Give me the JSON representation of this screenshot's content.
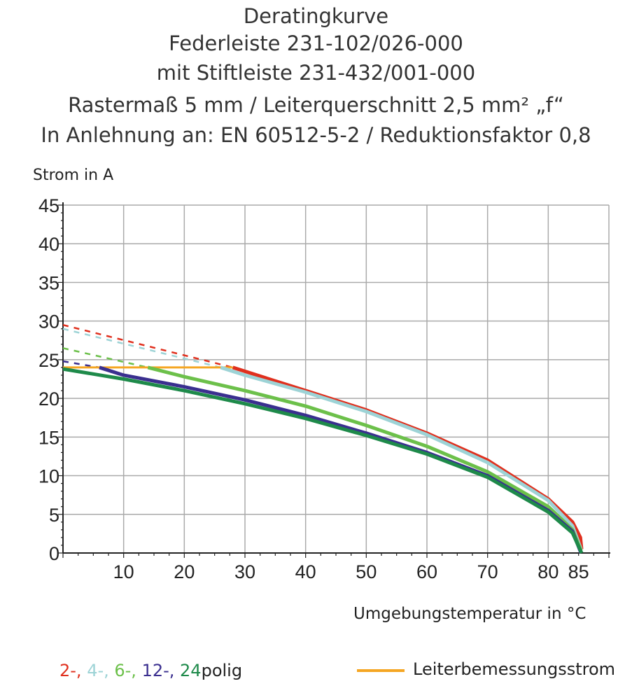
{
  "chart_data": {
    "type": "line",
    "title": [
      "Deratingkurve",
      "Federleiste 231-102/026-000",
      "mit Stiftleiste 231-432/001-000",
      "Rastermaß 5 mm / Leiterquerschnitt 2,5 mm² „f“",
      "In Anlehnung an: EN 60512-5-2 / Reduktionsfaktor 0,8"
    ],
    "ylabel": "Strom in A",
    "xlabel": "Umgebungstemperatur in °C",
    "xlim": [
      0,
      90
    ],
    "ylim": [
      0,
      45
    ],
    "xticks": [
      10,
      20,
      30,
      40,
      50,
      60,
      70,
      80,
      85
    ],
    "yticks": [
      0,
      5,
      10,
      15,
      20,
      25,
      30,
      35,
      40,
      45
    ],
    "grid": true,
    "series": [
      {
        "name": "2-",
        "color": "#e0301e",
        "dashed": [
          [
            0,
            29.5
          ],
          [
            28,
            24
          ]
        ],
        "values": [
          [
            28,
            24
          ],
          [
            40,
            21
          ],
          [
            50,
            18.5
          ],
          [
            60,
            15.5
          ],
          [
            70,
            12
          ],
          [
            80,
            7
          ],
          [
            84,
            4
          ],
          [
            85.3,
            2
          ],
          [
            85.5,
            0.5
          ]
        ]
      },
      {
        "name": "4-",
        "color": "#9dd3d6",
        "dashed": [
          [
            0,
            29
          ],
          [
            26,
            24
          ]
        ],
        "values": [
          [
            26,
            24
          ],
          [
            30,
            23
          ],
          [
            40,
            20.8
          ],
          [
            50,
            18.3
          ],
          [
            60,
            15.3
          ],
          [
            70,
            11.7
          ],
          [
            80,
            6.8
          ],
          [
            84,
            3.5
          ],
          [
            85.4,
            0.5
          ]
        ]
      },
      {
        "name": "6-",
        "color": "#6cc04a",
        "dashed": [
          [
            0,
            26.5
          ],
          [
            14,
            24
          ]
        ],
        "values": [
          [
            14,
            24
          ],
          [
            20,
            22.8
          ],
          [
            30,
            21
          ],
          [
            40,
            19
          ],
          [
            50,
            16.5
          ],
          [
            60,
            13.8
          ],
          [
            70,
            10.5
          ],
          [
            80,
            6
          ],
          [
            84,
            3
          ],
          [
            85.4,
            0.3
          ]
        ]
      },
      {
        "name": "12-",
        "color": "#3a2f8f",
        "dashed": [
          [
            0,
            24.8
          ],
          [
            6,
            24
          ]
        ],
        "values": [
          [
            6,
            24
          ],
          [
            10,
            23
          ],
          [
            20,
            21.5
          ],
          [
            30,
            19.8
          ],
          [
            40,
            17.8
          ],
          [
            50,
            15.5
          ],
          [
            60,
            13
          ],
          [
            70,
            10
          ],
          [
            80,
            5.5
          ],
          [
            84,
            2.8
          ],
          [
            85.4,
            0
          ]
        ]
      },
      {
        "name": "24",
        "color": "#1e8a4a",
        "dashed": [],
        "values": [
          [
            0,
            23.8
          ],
          [
            10,
            22.5
          ],
          [
            20,
            21
          ],
          [
            30,
            19.3
          ],
          [
            40,
            17.4
          ],
          [
            50,
            15.2
          ],
          [
            60,
            12.8
          ],
          [
            70,
            9.8
          ],
          [
            80,
            5.3
          ],
          [
            84,
            2.6
          ],
          [
            85.5,
            0
          ]
        ]
      }
    ],
    "rated_current": {
      "name": "Leiterbemessungsstrom",
      "color": "#f5a623",
      "values": [
        [
          0,
          24
        ],
        [
          28,
          24
        ]
      ]
    },
    "legend_suffix": "polig",
    "legend_placement": "bottom"
  }
}
